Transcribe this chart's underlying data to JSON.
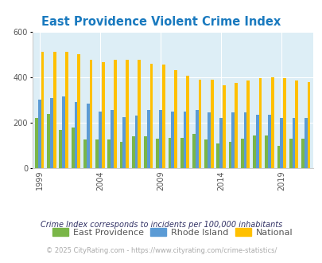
{
  "title": "East Providence Violent Crime Index",
  "years": [
    1999,
    2000,
    2001,
    2002,
    2003,
    2004,
    2005,
    2006,
    2007,
    2008,
    2009,
    2010,
    2011,
    2012,
    2013,
    2014,
    2015,
    2016,
    2017,
    2018,
    2019,
    2020,
    2021
  ],
  "east_providence": [
    220,
    240,
    170,
    180,
    125,
    125,
    125,
    115,
    140,
    140,
    130,
    135,
    135,
    150,
    125,
    110,
    115,
    130,
    145,
    145,
    100,
    130,
    130
  ],
  "rhode_island": [
    300,
    310,
    315,
    290,
    285,
    250,
    255,
    225,
    230,
    255,
    255,
    250,
    250,
    255,
    245,
    220,
    245,
    245,
    235,
    235,
    220,
    220,
    220
  ],
  "national": [
    510,
    510,
    510,
    500,
    475,
    465,
    475,
    475,
    475,
    460,
    455,
    430,
    405,
    390,
    390,
    365,
    375,
    385,
    395,
    400,
    395,
    385,
    380
  ],
  "ep_color": "#7ab648",
  "ri_color": "#5b9bd5",
  "nat_color": "#ffc000",
  "bg_color": "#ddeef6",
  "ylim": [
    0,
    600
  ],
  "yticks": [
    0,
    200,
    400,
    600
  ],
  "footnote1": "Crime Index corresponds to incidents per 100,000 inhabitants",
  "footnote2": "© 2025 CityRating.com - https://www.cityrating.com/crime-statistics/",
  "legend_labels": [
    "East Providence",
    "Rhode Island",
    "National"
  ],
  "title_color": "#1a7abf",
  "footnote1_color": "#333366",
  "footnote2_color": "#aaaaaa",
  "x_tick_years": [
    1999,
    2004,
    2009,
    2014,
    2019
  ]
}
